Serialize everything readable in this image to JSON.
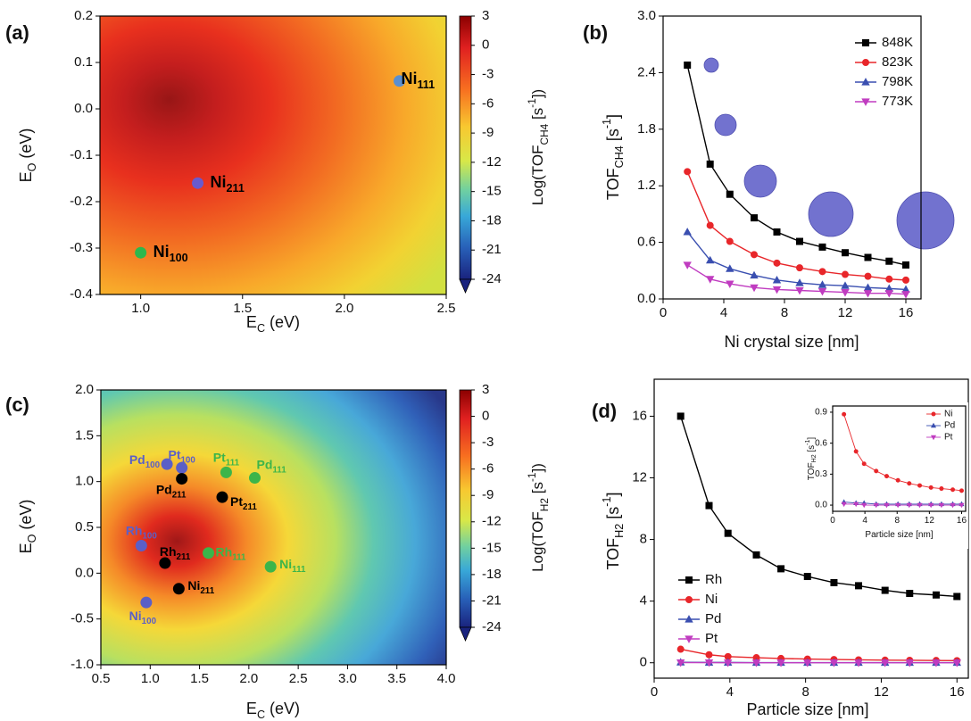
{
  "chart_data": [
    {
      "type": "contour",
      "title": "(a)",
      "xlabel": [
        {
          "text": "E"
        },
        {
          "sub": "C"
        },
        {
          "text": " (eV)"
        }
      ],
      "ylabel": [
        {
          "text": "E"
        },
        {
          "sub": "O"
        },
        {
          "text": " (eV)"
        }
      ],
      "xlim": [
        0.8,
        2.5
      ],
      "xticks": [
        {
          "value": 1,
          "label": "1.0"
        },
        1.5,
        {
          "value": 2,
          "label": "2.0"
        },
        2.5
      ],
      "ylim": [
        -0.4,
        0.2
      ],
      "yticks": [
        -0.4,
        -0.3,
        -0.2,
        -0.1,
        {
          "value": 0,
          "label": "0.0"
        },
        0.1,
        0.2
      ],
      "colorbar": {
        "label": [
          {
            "text": "Log(TOF"
          },
          {
            "sub": "CH4"
          },
          {
            "text": " [s"
          },
          {
            "sup": "-1"
          },
          {
            "text": "])"
          }
        ],
        "lim": [
          -24,
          3
        ],
        "ticks": [
          3,
          0,
          -3,
          -6,
          -9,
          -12,
          -15,
          -18,
          -21,
          -24
        ]
      },
      "points": [
        {
          "label": "Ni",
          "sub": "111",
          "x": 2.27,
          "y": 0.06,
          "color": "#5b8fd0",
          "label_color": "#000000"
        },
        {
          "label": "Ni",
          "sub": "211",
          "x": 1.28,
          "y": -0.16,
          "color": "#6a5acd",
          "label_color": "#000000"
        },
        {
          "label": "Ni",
          "sub": "100",
          "x": 1.0,
          "y": -0.31,
          "color": "#2db84d",
          "label_color": "#000000"
        }
      ]
    },
    {
      "type": "line",
      "title": "(b)",
      "xlabel": [
        {
          "text": "Ni crystal size [nm]"
        }
      ],
      "ylabel": [
        {
          "text": "TOF"
        },
        {
          "sub": "CH4"
        },
        {
          "text": " [s"
        },
        {
          "sup": "-1"
        },
        {
          "text": "]"
        }
      ],
      "xlim": [
        0,
        17
      ],
      "xticks": [
        0,
        4,
        8,
        12,
        16
      ],
      "ylim": [
        0,
        3
      ],
      "yticks": [
        {
          "value": 0,
          "label": "0.0"
        },
        0.6,
        1.2,
        1.8,
        2.4,
        {
          "value": 3,
          "label": "3.0"
        }
      ],
      "legend": "upper right",
      "x": [
        1.6,
        3.1,
        4.4,
        6.0,
        7.5,
        9.0,
        10.5,
        12.0,
        13.5,
        14.9,
        16.0
      ],
      "series": [
        {
          "name": "848K",
          "color": "#000000",
          "marker": "s",
          "values": [
            2.48,
            1.43,
            1.11,
            0.86,
            0.71,
            0.61,
            0.55,
            0.49,
            0.44,
            0.4,
            0.36
          ]
        },
        {
          "name": "823K",
          "color": "#e8262a",
          "marker": "o",
          "values": [
            1.35,
            0.78,
            0.61,
            0.47,
            0.38,
            0.33,
            0.29,
            0.26,
            0.24,
            0.21,
            0.2
          ]
        },
        {
          "name": "798K",
          "color": "#3a4fb0",
          "marker": "^",
          "values": [
            0.71,
            0.41,
            0.32,
            0.25,
            0.2,
            0.17,
            0.15,
            0.14,
            0.12,
            0.11,
            0.1
          ]
        },
        {
          "name": "773K",
          "color": "#c03cc0",
          "marker": "v",
          "values": [
            0.36,
            0.21,
            0.16,
            0.12,
            0.1,
            0.09,
            0.08,
            0.07,
            0.06,
            0.06,
            0.05
          ]
        }
      ]
    },
    {
      "type": "contour",
      "title": "(c)",
      "xlabel": [
        {
          "text": "E"
        },
        {
          "sub": "C"
        },
        {
          "text": " (eV)"
        }
      ],
      "ylabel": [
        {
          "text": "E"
        },
        {
          "sub": "O"
        },
        {
          "text": " (eV)"
        }
      ],
      "xlim": [
        0.5,
        4.0
      ],
      "xticks": [
        0.5,
        {
          "value": 1,
          "label": "1.0"
        },
        1.5,
        {
          "value": 2,
          "label": "2.0"
        },
        2.5,
        {
          "value": 3,
          "label": "3.0"
        },
        3.5,
        {
          "value": 4,
          "label": "4.0"
        }
      ],
      "ylim": [
        -1,
        2
      ],
      "yticks": [
        {
          "value": -1,
          "label": "-1.0"
        },
        -0.5,
        {
          "value": 0,
          "label": "0.0"
        },
        0.5,
        {
          "value": 1,
          "label": "1.0"
        },
        1.5,
        {
          "value": 2,
          "label": "2.0"
        }
      ],
      "colorbar": {
        "label": [
          {
            "text": "Log(TOF"
          },
          {
            "sub": "H2"
          },
          {
            "text": " [s"
          },
          {
            "sup": "-1"
          },
          {
            "text": "])"
          }
        ],
        "lim": [
          -24,
          3
        ],
        "ticks": [
          3,
          0,
          -3,
          -6,
          -9,
          -12,
          -15,
          -18,
          -21,
          -24
        ]
      },
      "points": [
        {
          "label": "Pd",
          "sub": "100",
          "x": 1.17,
          "y": 1.19,
          "color": "#5b5fc7",
          "label_color": "#5b5fc7"
        },
        {
          "label": "Pt",
          "sub": "100",
          "x": 1.32,
          "y": 1.15,
          "color": "#5b5fc7",
          "label_color": "#5b5fc7"
        },
        {
          "label": "Pt",
          "sub": "111",
          "x": 1.77,
          "y": 1.1,
          "color": "#3cb54a",
          "label_color": "#3cb54a"
        },
        {
          "label": "Pd",
          "sub": "111",
          "x": 2.06,
          "y": 1.04,
          "color": "#3cb54a",
          "label_color": "#3cb54a"
        },
        {
          "label": "Pd",
          "sub": "211",
          "x": 1.32,
          "y": 1.03,
          "color": "#000000",
          "label_color": "#000000"
        },
        {
          "label": "Pt",
          "sub": "211",
          "x": 1.73,
          "y": 0.83,
          "color": "#000000",
          "label_color": "#000000"
        },
        {
          "label": "Rh",
          "sub": "100",
          "x": 0.91,
          "y": 0.3,
          "color": "#5b5fc7",
          "label_color": "#5b5fc7"
        },
        {
          "label": "Rh",
          "sub": "211",
          "x": 1.15,
          "y": 0.11,
          "color": "#000000",
          "label_color": "#000000"
        },
        {
          "label": "Rh",
          "sub": "111",
          "x": 1.59,
          "y": 0.22,
          "color": "#3cb54a",
          "label_color": "#3cb54a"
        },
        {
          "label": "Ni",
          "sub": "111",
          "x": 2.22,
          "y": 0.07,
          "color": "#3cb54a",
          "label_color": "#3cb54a"
        },
        {
          "label": "Ni",
          "sub": "211",
          "x": 1.29,
          "y": -0.17,
          "color": "#000000",
          "label_color": "#000000"
        },
        {
          "label": "Ni",
          "sub": "100",
          "x": 0.96,
          "y": -0.32,
          "color": "#5b5fc7",
          "label_color": "#5b5fc7"
        }
      ]
    },
    {
      "type": "line",
      "title": "(d)",
      "xlabel": [
        {
          "text": "Particle size [nm]"
        }
      ],
      "ylabel": [
        {
          "text": "TOF"
        },
        {
          "sub": "H2"
        },
        {
          "text": " [s"
        },
        {
          "sup": "-1"
        },
        {
          "text": "]"
        }
      ],
      "xlim": [
        0,
        16.6
      ],
      "xticks": [
        0,
        4,
        8,
        12,
        16
      ],
      "ylim": [
        -1,
        18.4
      ],
      "yticks": [
        0,
        4,
        8,
        12,
        16
      ],
      "legend": "lower left",
      "x": [
        1.4,
        2.9,
        3.9,
        5.4,
        6.7,
        8.1,
        9.5,
        10.8,
        12.2,
        13.5,
        14.9,
        16.0
      ],
      "series": [
        {
          "name": "Rh",
          "color": "#000000",
          "marker": "s",
          "values": [
            16.0,
            10.2,
            8.4,
            7.0,
            6.1,
            5.6,
            5.2,
            5.0,
            4.7,
            4.5,
            4.4,
            4.3
          ]
        },
        {
          "name": "Ni",
          "color": "#e8262a",
          "marker": "o",
          "values": [
            0.88,
            0.52,
            0.4,
            0.33,
            0.28,
            0.24,
            0.21,
            0.19,
            0.17,
            0.16,
            0.15,
            0.14
          ]
        },
        {
          "name": "Pd",
          "color": "#3a4fb0",
          "marker": "^",
          "values": [
            0.03,
            0.02,
            0.02,
            0.01,
            0.01,
            0.01,
            0.01,
            0.01,
            0.01,
            0.01,
            0.01,
            0.01
          ]
        },
        {
          "name": "Pt",
          "color": "#c03cc0",
          "marker": "v",
          "values": [
            0.01,
            0.01,
            0,
            0,
            0,
            0,
            0,
            0,
            0,
            0,
            0,
            0
          ]
        }
      ],
      "inset": {
        "xlabel": [
          {
            "text": "Particle size [nm]"
          }
        ],
        "ylabel": [
          {
            "text": "TOF"
          },
          {
            "sub": "H2"
          },
          {
            "text": " [s"
          },
          {
            "sup": "-1"
          },
          {
            "text": "]"
          }
        ],
        "xlim": [
          0,
          16.5
        ],
        "xticks": [
          0,
          4,
          8,
          12,
          16
        ],
        "ylim": [
          -0.06,
          0.96
        ],
        "yticks": [
          {
            "value": 0,
            "label": "0.0"
          },
          0.3,
          0.6,
          0.9
        ],
        "legend": [
          "Ni",
          "Pd",
          "Pt"
        ],
        "legend_corner": "upper right"
      }
    }
  ]
}
